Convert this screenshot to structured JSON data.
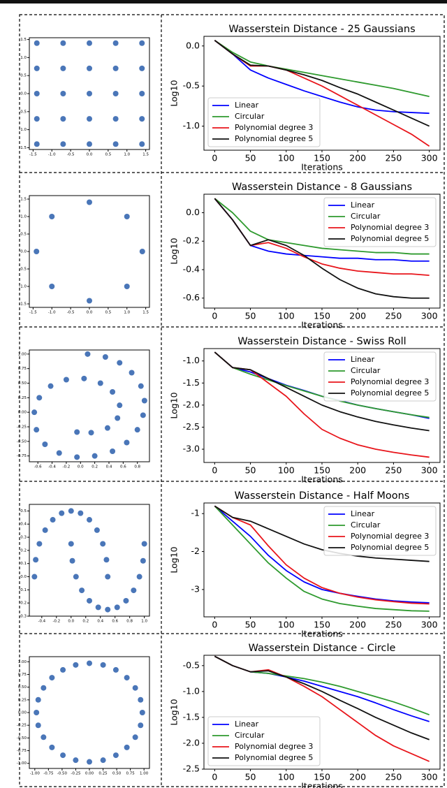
{
  "chart_data": [
    {
      "type": "scatter",
      "color": "#4a76b8",
      "x": [
        -1.4,
        -0.7,
        0,
        0.7,
        1.4,
        -1.4,
        -0.7,
        0,
        0.7,
        1.4,
        -1.4,
        -0.7,
        0,
        0.7,
        1.4,
        -1.4,
        -0.7,
        0,
        0.7,
        1.4,
        -1.4,
        -0.7,
        0,
        0.7,
        1.4
      ],
      "y": [
        1.4,
        1.4,
        1.4,
        1.4,
        1.4,
        0.7,
        0.7,
        0.7,
        0.7,
        0.7,
        0,
        0,
        0,
        0,
        0,
        -0.7,
        -0.7,
        -0.7,
        -0.7,
        -0.7,
        -1.4,
        -1.4,
        -1.4,
        -1.4,
        -1.4
      ],
      "xlim": [
        -1.6,
        1.6
      ],
      "ylim": [
        -1.55,
        1.55
      ],
      "xticks": [
        -1.5,
        {
          "value": -1,
          "label": "-1.0"
        },
        -0.5,
        {
          "value": 0,
          "label": "0.0"
        },
        0.5,
        {
          "value": 1,
          "label": "1.0"
        },
        1.5
      ],
      "yticks": [
        -1.5,
        {
          "value": -1,
          "label": "-1.0"
        },
        -0.5,
        {
          "value": 0,
          "label": "0.0"
        },
        0.5,
        {
          "value": 1,
          "label": "1.0"
        },
        1.5
      ]
    },
    {
      "type": "line",
      "title": "Wasserstein Distance - 25 Gaussians",
      "xlabel": "Iterations",
      "ylabel": "Log10",
      "x": [
        0,
        25,
        50,
        75,
        100,
        125,
        150,
        175,
        200,
        225,
        250,
        275,
        300
      ],
      "series": [
        {
          "name": "Linear",
          "color": "#0000ff",
          "values": [
            0.07,
            -0.1,
            -0.3,
            -0.4,
            -0.48,
            -0.56,
            -0.63,
            -0.7,
            -0.76,
            -0.8,
            -0.82,
            -0.83,
            -0.84
          ]
        },
        {
          "name": "Circular",
          "color": "#2e9a2e",
          "values": [
            0.07,
            -0.08,
            -0.2,
            -0.25,
            -0.29,
            -0.33,
            -0.37,
            -0.41,
            -0.45,
            -0.49,
            -0.53,
            -0.58,
            -0.63
          ]
        },
        {
          "name": "Polynomial degree 3",
          "color": "#e8151b",
          "values": [
            0.07,
            -0.1,
            -0.25,
            -0.25,
            -0.3,
            -0.4,
            -0.5,
            -0.62,
            -0.74,
            -0.86,
            -0.98,
            -1.1,
            -1.25
          ]
        },
        {
          "name": "Polynomial degree 5",
          "color": "#111111",
          "values": [
            0.07,
            -0.1,
            -0.24,
            -0.25,
            -0.3,
            -0.36,
            -0.43,
            -0.52,
            -0.6,
            -0.7,
            -0.8,
            -0.9,
            -1.0
          ]
        }
      ],
      "xlim": [
        -15,
        315
      ],
      "ylim": [
        -1.3,
        0.12
      ],
      "xticks": [
        0,
        50,
        100,
        150,
        200,
        250,
        300
      ],
      "yticks": [
        {
          "value": 0,
          "label": "0.0"
        },
        -0.5,
        {
          "value": -1,
          "label": "-1.0"
        }
      ],
      "legend": "lower left"
    },
    {
      "type": "scatter",
      "color": "#4a76b8",
      "x": [
        0,
        1,
        1.41,
        1,
        0,
        -1,
        -1.41,
        -1
      ],
      "y": [
        1.41,
        1,
        0,
        -1,
        -1.41,
        -1,
        0,
        1
      ],
      "xlim": [
        -1.6,
        1.6
      ],
      "ylim": [
        -1.6,
        1.6
      ],
      "xticks": [
        -1.5,
        {
          "value": -1,
          "label": "-1.0"
        },
        -0.5,
        {
          "value": 0,
          "label": "0.0"
        },
        0.5,
        {
          "value": 1,
          "label": "1.0"
        },
        1.5
      ],
      "yticks": [
        -1.5,
        {
          "value": -1,
          "label": "-1.0"
        },
        -0.5,
        {
          "value": 0,
          "label": "0.0"
        },
        0.5,
        {
          "value": 1,
          "label": "1.0"
        },
        1.5
      ]
    },
    {
      "type": "line",
      "title": "Wasserstein Distance - 8 Gaussians",
      "xlabel": "Iterations",
      "ylabel": "Log10",
      "x": [
        0,
        25,
        50,
        75,
        100,
        125,
        150,
        175,
        200,
        225,
        250,
        275,
        300
      ],
      "series": [
        {
          "name": "Linear",
          "color": "#0000ff",
          "values": [
            0.1,
            -0.05,
            -0.23,
            -0.27,
            -0.29,
            -0.3,
            -0.31,
            -0.32,
            -0.32,
            -0.33,
            -0.33,
            -0.34,
            -0.34
          ]
        },
        {
          "name": "Circular",
          "color": "#2e9a2e",
          "values": [
            0.1,
            0,
            -0.13,
            -0.19,
            -0.21,
            -0.23,
            -0.25,
            -0.26,
            -0.27,
            -0.28,
            -0.28,
            -0.29,
            -0.29
          ]
        },
        {
          "name": "Polynomial degree 3",
          "color": "#e8151b",
          "values": [
            0.1,
            -0.05,
            -0.23,
            -0.21,
            -0.25,
            -0.31,
            -0.36,
            -0.39,
            -0.41,
            -0.42,
            -0.43,
            -0.43,
            -0.44
          ]
        },
        {
          "name": "Polynomial degree 5",
          "color": "#111111",
          "values": [
            0.1,
            -0.05,
            -0.23,
            -0.19,
            -0.23,
            -0.3,
            -0.39,
            -0.47,
            -0.53,
            -0.57,
            -0.59,
            -0.6,
            -0.6
          ]
        }
      ],
      "xlim": [
        -15,
        315
      ],
      "ylim": [
        -0.67,
        0.13
      ],
      "xticks": [
        0,
        50,
        100,
        150,
        200,
        250,
        300
      ],
      "yticks": [
        {
          "value": 0,
          "label": "0.0"
        },
        -0.2,
        -0.4,
        -0.6
      ],
      "legend": "upper right"
    },
    {
      "type": "scatter",
      "color": "#4a76b8",
      "x": [
        0.1,
        0.35,
        0.55,
        0.72,
        0.85,
        0.9,
        0.88,
        0.8,
        0.65,
        0.45,
        0.2,
        -0.05,
        -0.3,
        -0.5,
        -0.62,
        -0.65,
        -0.58,
        -0.42,
        -0.2,
        0.05,
        0.28,
        0.45,
        0.55,
        0.52,
        0.38,
        0.15,
        -0.05
      ],
      "y": [
        1.0,
        0.95,
        0.85,
        0.68,
        0.45,
        0.2,
        -0.05,
        -0.3,
        -0.52,
        -0.67,
        -0.75,
        -0.77,
        -0.7,
        -0.55,
        -0.3,
        0,
        0.25,
        0.45,
        0.56,
        0.58,
        0.5,
        0.35,
        0.12,
        -0.1,
        -0.27,
        -0.35,
        -0.34
      ],
      "xlim": [
        -0.72,
        0.97
      ],
      "ylim": [
        -0.85,
        1.07
      ],
      "xticks": [
        -0.6,
        -0.4,
        -0.2,
        {
          "value": 0,
          "label": "0.0"
        },
        0.2,
        0.4,
        0.6,
        0.8
      ],
      "yticks": [
        -0.75,
        {
          "value": -0.5,
          "label": "-0.50"
        },
        -0.25,
        {
          "value": 0,
          "label": "0.00"
        },
        0.25,
        {
          "value": 0.5,
          "label": "0.50"
        },
        0.75,
        {
          "value": 1,
          "label": "1.00"
        }
      ]
    },
    {
      "type": "line",
      "title": "Wasserstein Distance - Swiss Roll",
      "xlabel": "Iterations",
      "ylabel": "Log10",
      "x": [
        0,
        25,
        50,
        75,
        100,
        125,
        150,
        175,
        200,
        225,
        250,
        275,
        300
      ],
      "series": [
        {
          "name": "Linear",
          "color": "#0000ff",
          "values": [
            -0.8,
            -1.15,
            -1.25,
            -1.4,
            -1.55,
            -1.67,
            -1.8,
            -1.9,
            -2.0,
            -2.08,
            -2.15,
            -2.22,
            -2.3
          ]
        },
        {
          "name": "Circular",
          "color": "#2e9a2e",
          "values": [
            -0.8,
            -1.15,
            -1.3,
            -1.43,
            -1.56,
            -1.68,
            -1.8,
            -1.91,
            -2.0,
            -2.08,
            -2.15,
            -2.22,
            -2.28
          ]
        },
        {
          "name": "Polynomial degree 3",
          "color": "#e8151b",
          "values": [
            -0.8,
            -1.15,
            -1.2,
            -1.5,
            -1.8,
            -2.2,
            -2.55,
            -2.75,
            -2.9,
            -3.0,
            -3.07,
            -3.13,
            -3.18
          ]
        },
        {
          "name": "Polynomial degree 5",
          "color": "#111111",
          "values": [
            -0.8,
            -1.15,
            -1.2,
            -1.4,
            -1.6,
            -1.8,
            -2.0,
            -2.15,
            -2.27,
            -2.37,
            -2.45,
            -2.52,
            -2.58
          ]
        }
      ],
      "xlim": [
        -15,
        315
      ],
      "ylim": [
        -3.3,
        -0.72
      ],
      "xticks": [
        0,
        50,
        100,
        150,
        200,
        250,
        300
      ],
      "yticks": [
        {
          "value": -1,
          "label": "-1.0"
        },
        -1.5,
        {
          "value": -2,
          "label": "-2.0"
        },
        -2.5,
        {
          "value": -3,
          "label": "-3.0"
        }
      ],
      "legend": "upper right"
    },
    {
      "type": "scatter",
      "color": "#4a76b8",
      "x": [
        -0.5,
        -0.483,
        -0.433,
        -0.354,
        -0.25,
        -0.129,
        0,
        0.129,
        0.25,
        0.354,
        0.433,
        0.483,
        0.5,
        0,
        0.017,
        0.067,
        0.146,
        0.25,
        0.371,
        0.5,
        0.629,
        0.75,
        0.854,
        0.933,
        0.983,
        1.0
      ],
      "y": [
        0,
        0.129,
        0.25,
        0.354,
        0.433,
        0.483,
        0.5,
        0.483,
        0.433,
        0.354,
        0.25,
        0.129,
        0,
        0.25,
        0.121,
        0,
        -0.104,
        -0.183,
        -0.233,
        -0.25,
        -0.233,
        -0.183,
        -0.104,
        0,
        0.121,
        0.25
      ],
      "xlim": [
        -0.57,
        1.07
      ],
      "ylim": [
        -0.3,
        0.55
      ],
      "xticks": [
        -0.4,
        -0.2,
        {
          "value": 0,
          "label": "0.0"
        },
        0.2,
        0.4,
        0.6,
        0.8,
        {
          "value": 1,
          "label": "1.0"
        }
      ],
      "yticks": [
        -0.3,
        -0.2,
        -0.1,
        {
          "value": 0,
          "label": "0.0"
        },
        0.1,
        0.2,
        0.3,
        0.4,
        0.5
      ]
    },
    {
      "type": "line",
      "title": "Wasserstein Distance - Half Moons",
      "xlabel": "Iterations",
      "ylabel": "Log10",
      "x": [
        0,
        25,
        50,
        75,
        100,
        125,
        150,
        175,
        200,
        225,
        250,
        275,
        300
      ],
      "series": [
        {
          "name": "Linear",
          "color": "#0000ff",
          "values": [
            -0.8,
            -1.2,
            -1.6,
            -2.1,
            -2.5,
            -2.8,
            -3.0,
            -3.1,
            -3.18,
            -3.25,
            -3.3,
            -3.33,
            -3.35
          ]
        },
        {
          "name": "Circular",
          "color": "#2e9a2e",
          "values": [
            -0.8,
            -1.3,
            -1.8,
            -2.3,
            -2.7,
            -3.05,
            -3.25,
            -3.37,
            -3.44,
            -3.5,
            -3.53,
            -3.56,
            -3.57
          ]
        },
        {
          "name": "Polynomial degree 3",
          "color": "#e8151b",
          "values": [
            -0.8,
            -1.1,
            -1.3,
            -1.85,
            -2.35,
            -2.7,
            -2.95,
            -3.1,
            -3.2,
            -3.27,
            -3.32,
            -3.36,
            -3.38
          ]
        },
        {
          "name": "Polynomial degree 5",
          "color": "#111111",
          "values": [
            -0.8,
            -1.1,
            -1.2,
            -1.4,
            -1.6,
            -1.8,
            -1.95,
            -2.05,
            -2.12,
            -2.17,
            -2.2,
            -2.23,
            -2.26
          ]
        }
      ],
      "xlim": [
        -15,
        315
      ],
      "ylim": [
        -3.72,
        -0.72
      ],
      "xticks": [
        0,
        50,
        100,
        150,
        200,
        250,
        300
      ],
      "yticks": [
        -1,
        -2,
        -3
      ],
      "legend": "upper right"
    },
    {
      "type": "scatter",
      "color": "#4a76b8",
      "x": [
        0.97,
        0.937,
        0.84,
        0.686,
        0.485,
        0.251,
        0,
        -0.251,
        -0.485,
        -0.686,
        -0.84,
        -0.937,
        -0.97,
        -0.937,
        -0.84,
        -0.686,
        -0.485,
        -0.251,
        0,
        0.251,
        0.485,
        0.686,
        0.84,
        0.937
      ],
      "y": [
        0,
        0.251,
        0.485,
        0.686,
        0.84,
        0.937,
        0.97,
        0.937,
        0.84,
        0.686,
        0.485,
        0.251,
        0,
        -0.251,
        -0.485,
        -0.686,
        -0.84,
        -0.937,
        -0.97,
        -0.937,
        -0.84,
        -0.686,
        -0.485,
        -0.251
      ],
      "xlim": [
        -1.1,
        1.1
      ],
      "ylim": [
        -1.1,
        1.1
      ],
      "xticks": [
        {
          "value": -1,
          "label": "-1.00"
        },
        -0.75,
        {
          "value": -0.5,
          "label": "-0.50"
        },
        -0.25,
        {
          "value": 0,
          "label": "0.00"
        },
        0.25,
        {
          "value": 0.5,
          "label": "0.50"
        },
        0.75,
        {
          "value": 1,
          "label": "1.00"
        }
      ],
      "yticks": [
        {
          "value": -1,
          "label": "-1.00"
        },
        -0.75,
        {
          "value": -0.5,
          "label": "-0.50"
        },
        -0.25,
        {
          "value": 0,
          "label": "0.00"
        },
        0.25,
        {
          "value": 0.5,
          "label": "0.50"
        },
        0.75,
        {
          "value": 1,
          "label": "1.00"
        }
      ]
    },
    {
      "type": "line",
      "title": "Wasserstein Distance - Circle",
      "xlabel": "Iterations",
      "ylabel": "Log10",
      "x": [
        0,
        25,
        50,
        75,
        100,
        125,
        150,
        175,
        200,
        225,
        250,
        275,
        300
      ],
      "series": [
        {
          "name": "Linear",
          "color": "#0000ff",
          "values": [
            -0.32,
            -0.5,
            -0.62,
            -0.65,
            -0.72,
            -0.8,
            -0.9,
            -1.0,
            -1.1,
            -1.22,
            -1.35,
            -1.47,
            -1.58
          ]
        },
        {
          "name": "Circular",
          "color": "#2e9a2e",
          "values": [
            -0.32,
            -0.5,
            -0.62,
            -0.65,
            -0.7,
            -0.75,
            -0.82,
            -0.9,
            -1.0,
            -1.1,
            -1.2,
            -1.32,
            -1.45
          ]
        },
        {
          "name": "Polynomial degree 3",
          "color": "#e8151b",
          "values": [
            -0.32,
            -0.5,
            -0.62,
            -0.58,
            -0.72,
            -0.9,
            -1.1,
            -1.35,
            -1.6,
            -1.85,
            -2.05,
            -2.2,
            -2.35
          ]
        },
        {
          "name": "Polynomial degree 5",
          "color": "#111111",
          "values": [
            -0.32,
            -0.5,
            -0.62,
            -0.6,
            -0.72,
            -0.85,
            -1.0,
            -1.17,
            -1.33,
            -1.5,
            -1.65,
            -1.8,
            -1.93
          ]
        }
      ],
      "xlim": [
        -15,
        315
      ],
      "ylim": [
        -2.5,
        -0.3
      ],
      "xticks": [
        0,
        50,
        100,
        150,
        200,
        250,
        300
      ],
      "yticks": [
        -0.5,
        {
          "value": -1,
          "label": "-1.0"
        },
        -1.5,
        {
          "value": -2,
          "label": "-2.0"
        },
        -2.5
      ],
      "legend": "lower left"
    }
  ]
}
